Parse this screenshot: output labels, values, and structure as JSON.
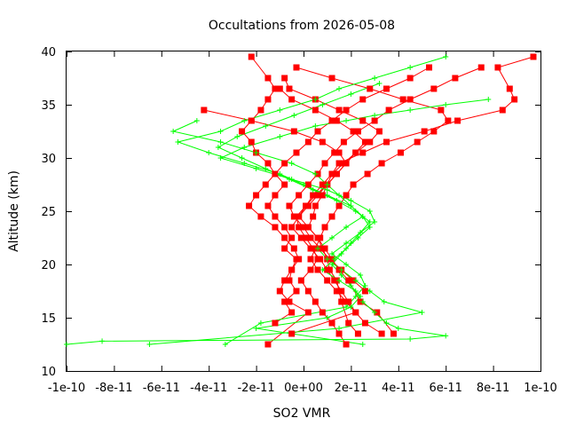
{
  "chart_data": {
    "type": "scatter",
    "title": "Occultations from 2026-05-08",
    "xlabel": "SO2 VMR",
    "ylabel": "Altitude (km)",
    "xlim": [
      -1e-10,
      1e-10
    ],
    "ylim": [
      10,
      40
    ],
    "x_ticks": [
      {
        "value": -1e-10,
        "label": "-1e-10"
      },
      {
        "value": -8e-11,
        "label": "-8e-11"
      },
      {
        "value": -6e-11,
        "label": "-6e-11"
      },
      {
        "value": -4e-11,
        "label": "-4e-11"
      },
      {
        "value": -2e-11,
        "label": "-2e-11"
      },
      {
        "value": 0,
        "label": "0e+00"
      },
      {
        "value": 2e-11,
        "label": "2e-11"
      },
      {
        "value": 4e-11,
        "label": "4e-11"
      },
      {
        "value": 6e-11,
        "label": "6e-11"
      },
      {
        "value": 8e-11,
        "label": "8e-11"
      },
      {
        "value": 1e-10,
        "label": "1e-10"
      }
    ],
    "y_ticks": [
      {
        "value": 10,
        "label": "10"
      },
      {
        "value": 15,
        "label": "15"
      },
      {
        "value": 20,
        "label": "20"
      },
      {
        "value": 25,
        "label": "25"
      },
      {
        "value": 30,
        "label": "30"
      },
      {
        "value": 35,
        "label": "35"
      },
      {
        "value": 40,
        "label": "40"
      }
    ],
    "grid": false,
    "legend": "none",
    "series": [
      {
        "color": "#ff0000",
        "marker": "square",
        "profiles": [
          {
            "x": [
              -2.2e-11,
              -1.5e-11,
              -1.2e-11,
              -1.5e-11,
              -1.8e-11,
              -2.2e-11,
              -2.6e-11,
              -2.2e-11,
              -2e-11,
              -1.5e-11,
              -1.2e-11,
              -8e-12,
              -1.2e-11,
              -1.5e-11,
              -1.2e-11,
              -8e-12,
              -5e-12,
              -8e-12,
              -3e-12,
              -5e-12,
              -6e-12,
              -3e-12,
              -8e-12,
              -5e-12,
              -1.2e-11
            ],
            "y": [
              39.5,
              37.5,
              36.5,
              35.5,
              34.5,
              33.5,
              32.5,
              31.5,
              30.5,
              29.5,
              28.5,
              27.5,
              26.5,
              25.5,
              24.5,
              23.5,
              22.5,
              21.5,
              20.5,
              19.5,
              18.5,
              17.5,
              16.5,
              15.5,
              14.5
            ]
          },
          {
            "x": [
              9.7e-11,
              8.2e-11,
              8.7e-11,
              8.9e-11,
              8.4e-11,
              6.5e-11,
              5.1e-11,
              3.5e-11,
              2.5e-11,
              1.5e-11,
              1.2e-11,
              1e-11,
              8e-12,
              5e-12,
              4e-12,
              2e-12,
              6e-12,
              8e-12,
              1e-11,
              1.1e-11,
              1.4e-11,
              1.6e-11,
              1.9e-11,
              2.3e-11
            ],
            "y": [
              39.5,
              38.5,
              36.5,
              35.5,
              34.5,
              33.5,
              32.5,
              31.5,
              30.5,
              29.5,
              28.5,
              27.5,
              26.5,
              25.5,
              24.5,
              23.5,
              22.5,
              21.5,
              20.5,
              19.5,
              18.5,
              16.5,
              14.5,
              13.5
            ]
          },
          {
            "x": [
              -3e-12,
              1.2e-11,
              2.8e-11,
              4.2e-11,
              5.8e-11,
              6.1e-11,
              5.5e-11,
              4.8e-11,
              4.1e-11,
              3.3e-11,
              2.7e-11,
              2.1e-11,
              1.8e-11,
              1.5e-11,
              1.2e-11,
              9e-12,
              7e-12,
              5e-12,
              3e-12,
              6e-12,
              1e-11,
              1.4e-11,
              1.8e-11,
              2.2e-11,
              2.6e-11,
              3.3e-11
            ],
            "y": [
              38.5,
              37.5,
              36.5,
              35.5,
              34.5,
              33.5,
              32.5,
              31.5,
              30.5,
              29.5,
              28.5,
              27.5,
              26.5,
              25.5,
              24.5,
              23.5,
              22.5,
              21.5,
              20.5,
              19.5,
              18.5,
              17.5,
              16.5,
              15.5,
              14.5,
              13.5
            ]
          },
          {
            "x": [
              -4.2e-11,
              -2.2e-11,
              -4e-12,
              8e-12,
              1.5e-11,
              1.8e-11,
              1.4e-11,
              1e-11,
              5e-12,
              1e-12,
              -3e-12,
              -2e-12,
              1e-12,
              4e-12,
              6e-12,
              3e-12,
              -1e-12,
              2e-12,
              5e-12,
              8e-12,
              1.2e-11,
              1.5e-11,
              1.8e-11
            ],
            "y": [
              34.5,
              33.5,
              32.5,
              31.5,
              30.5,
              29.5,
              28.5,
              27.5,
              26.5,
              25.5,
              24.5,
              23.5,
              22.5,
              21.5,
              20.5,
              19.5,
              18.5,
              17.5,
              16.5,
              15.5,
              14.5,
              13.5,
              12.5
            ]
          },
          {
            "x": [
              5.3e-11,
              4.5e-11,
              3.5e-11,
              2.5e-11,
              1.8e-11,
              1.2e-11,
              6e-12,
              2e-12,
              -3e-12,
              -8e-12,
              -1.2e-11,
              -1.6e-11,
              -2e-11,
              -2.3e-11,
              -1.8e-11,
              -1.2e-11,
              -8e-12,
              -4e-12,
              -2e-12,
              -5e-12,
              -8e-12,
              -1e-11,
              -6e-12,
              2e-12,
              -1.5e-11
            ],
            "y": [
              38.5,
              37.5,
              36.5,
              35.5,
              34.5,
              33.5,
              32.5,
              31.5,
              30.5,
              29.5,
              28.5,
              27.5,
              26.5,
              25.5,
              24.5,
              23.5,
              22.5,
              21.5,
              20.5,
              19.5,
              18.5,
              17.5,
              16.5,
              15.5,
              12.5
            ]
          },
          {
            "x": [
              -8e-12,
              -6e-12,
              5e-12,
              1.5e-11,
              2.5e-11,
              3.2e-11,
              2.8e-11,
              2.2e-11,
              1.7e-11,
              1.2e-11,
              8e-12,
              4e-12,
              1e-12,
              -2e-12,
              2e-12,
              6e-12,
              9e-12,
              1.2e-11,
              1.5e-11,
              1.9e-11,
              2.4e-11,
              3.1e-11,
              3.8e-11
            ],
            "y": [
              37.5,
              36.5,
              35.5,
              34.5,
              33.5,
              32.5,
              31.5,
              30.5,
              29.5,
              28.5,
              27.5,
              26.5,
              25.5,
              24.5,
              23.5,
              22.5,
              21.5,
              20.5,
              19.5,
              18.5,
              16.5,
              15.5,
              13.5
            ]
          },
          {
            "x": [
              7.5e-11,
              6.4e-11,
              5.5e-11,
              4.5e-11,
              3.6e-11,
              3e-11,
              2.3e-11,
              1.7e-11,
              1.3e-11,
              9e-12,
              6e-12,
              2e-12,
              -2e-12,
              -6e-12,
              -4e-12,
              0.0,
              3e-12,
              7e-12,
              1.1e-11,
              1.6e-11,
              2.1e-11,
              2.6e-11
            ],
            "y": [
              38.5,
              37.5,
              36.5,
              35.5,
              34.5,
              33.5,
              32.5,
              31.5,
              30.5,
              29.5,
              28.5,
              27.5,
              26.5,
              25.5,
              24.5,
              23.5,
              22.5,
              21.5,
              20.5,
              19.5,
              18.5,
              17.5
            ]
          },
          {
            "x": [
              -1e-11,
              -5e-12,
              5e-12,
              1.4e-11,
              2.1e-11,
              2.6e-11,
              2.2e-11,
              1.8e-11,
              1.4e-11,
              1e-11,
              6e-12,
              2e-12,
              -2e-12,
              -5e-12,
              -1e-12,
              3e-12,
              7e-12,
              1e-11,
              1.3e-11,
              1.6e-11,
              1.9e-11,
              2.2e-11,
              -5e-12
            ],
            "y": [
              36.5,
              35.5,
              34.5,
              33.5,
              32.5,
              31.5,
              30.5,
              29.5,
              28.5,
              27.5,
              26.5,
              25.5,
              24.5,
              23.5,
              22.5,
              21.5,
              20.5,
              19.5,
              18.5,
              17.5,
              16.5,
              15.5,
              13.5
            ]
          }
        ]
      },
      {
        "color": "#00ff00",
        "marker": "plus",
        "profiles": [
          {
            "x": [
              -4.5e-11,
              -5.5e-11,
              -3.5e-11,
              -2e-11,
              -5e-12,
              5e-12,
              1e-11,
              1.5e-11,
              2e-11,
              2.5e-11,
              2.8e-11,
              2.3e-11,
              1.8e-11,
              1.3e-11,
              8e-12,
              1.5e-11,
              2.2e-11,
              2.5e-11,
              3e-11,
              3.5e-11,
              4e-11,
              6e-11,
              4.5e-11,
              -8.5e-11,
              -1e-10
            ],
            "y": [
              33.5,
              32.5,
              31.5,
              30.5,
              29.5,
              28.5,
              27.5,
              26.5,
              25.5,
              24.5,
              23.5,
              22.5,
              21.5,
              20.5,
              19.5,
              18.5,
              17.5,
              16.5,
              15.5,
              14.5,
              14.0,
              13.3,
              13.0,
              12.8,
              12.5
            ]
          },
          {
            "x": [
              6e-11,
              4.5e-11,
              3e-11,
              1.5e-11,
              5e-12,
              -1e-11,
              -2.5e-11,
              -3.5e-11,
              -5.3e-11,
              -4e-11,
              -2.5e-11,
              -1e-11,
              0.0,
              1e-11,
              2e-11,
              2.5e-11,
              1.8e-11,
              1.2e-11,
              6e-12,
              1e-11,
              1.6e-11,
              2.2e-11,
              2.8e-11,
              3.4e-11,
              5e-11,
              1.5e-11,
              -6.5e-11
            ],
            "y": [
              39.5,
              38.5,
              37.5,
              36.5,
              35.5,
              34.5,
              33.5,
              32.5,
              31.5,
              30.5,
              29.5,
              28.5,
              27.5,
              26.5,
              25.5,
              24.5,
              23.5,
              22.5,
              21.5,
              20.5,
              19.5,
              18.5,
              17.5,
              16.5,
              15.5,
              14.0,
              12.5
            ]
          },
          {
            "x": [
              7.8e-11,
              6e-11,
              4.5e-11,
              3e-11,
              1.8e-11,
              5e-12,
              -1e-11,
              -2.5e-11,
              -3.5e-11,
              -2e-11,
              -5e-12,
              1e-11,
              2e-11,
              2.8e-11,
              3e-11,
              2.4e-11,
              1.8e-11,
              1.2e-11,
              1.8e-11,
              2.4e-11,
              2.6e-11,
              2.2e-11,
              1.8e-11,
              -1.8e-11,
              -3.3e-11
            ],
            "y": [
              35.5,
              35.0,
              34.5,
              34.0,
              33.5,
              33.0,
              32.0,
              31.0,
              30.0,
              29.0,
              28.0,
              27.0,
              26.0,
              25.0,
              24.0,
              23.0,
              22.0,
              21.0,
              20.0,
              19.0,
              18.0,
              17.0,
              16.0,
              14.5,
              12.5
            ]
          },
          {
            "x": [
              3.2e-11,
              2e-11,
              8e-12,
              -4e-12,
              -1.6e-11,
              -2.8e-11,
              -3.6e-11,
              -2.6e-11,
              -1.6e-11,
              -6e-12,
              4e-12,
              1.4e-11,
              2.2e-11,
              2.8e-11,
              2.4e-11,
              2e-11,
              1.6e-11,
              1.2e-11,
              1.6e-11,
              2e-11,
              2.4e-11,
              2e-11,
              1e-11,
              -2e-11,
              2.5e-11
            ],
            "y": [
              37.0,
              36.0,
              35.0,
              34.0,
              33.0,
              32.0,
              31.0,
              30.0,
              29.0,
              28.0,
              27.0,
              26.0,
              25.0,
              24.0,
              23.0,
              22.0,
              21.0,
              20.0,
              19.0,
              18.0,
              17.0,
              16.0,
              15.0,
              14.0,
              12.5
            ]
          }
        ]
      }
    ]
  }
}
